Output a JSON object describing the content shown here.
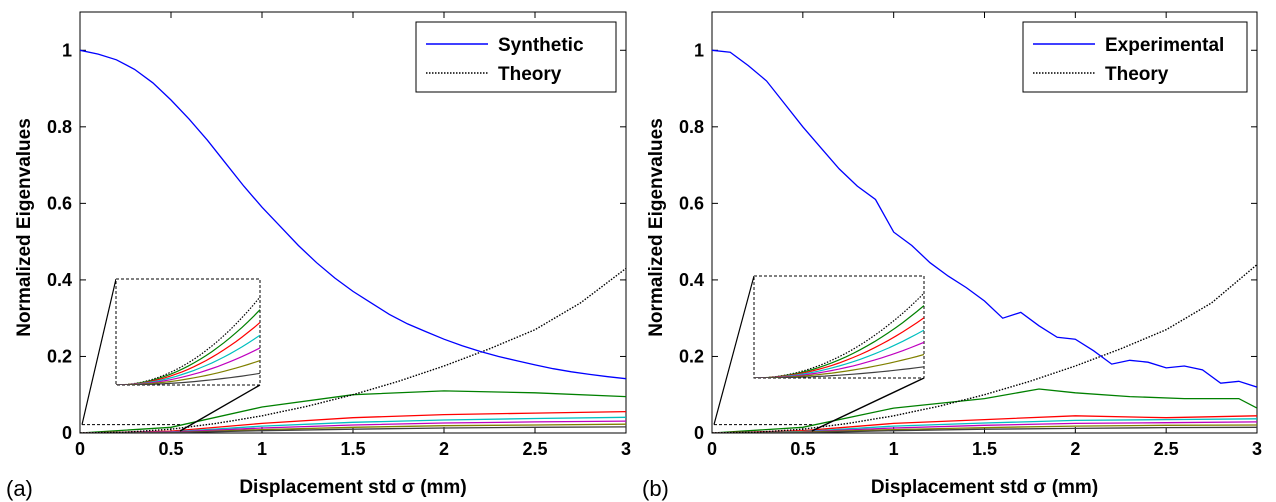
{
  "chart_data": [
    {
      "panel_label": "(a)",
      "type": "line",
      "xlabel": "Displacement std  σ (mm)",
      "ylabel": "Normalized Eigenvalues",
      "xlim": [
        0,
        3
      ],
      "ylim": [
        0,
        1.1
      ],
      "xticks": [
        "0",
        "0.5",
        "1",
        "1.5",
        "2",
        "2.5",
        "3"
      ],
      "yticks": [
        "0",
        "0.2",
        "0.4",
        "0.6",
        "0.8",
        "1"
      ],
      "grid": false,
      "legend_position": "top-right",
      "series": [
        {
          "name": "Synthetic",
          "style": "solid",
          "color": "#0000ff",
          "x": [
            0,
            0.1,
            0.2,
            0.3,
            0.4,
            0.5,
            0.6,
            0.7,
            0.8,
            0.9,
            1.0,
            1.1,
            1.2,
            1.3,
            1.4,
            1.5,
            1.6,
            1.7,
            1.8,
            1.9,
            2.0,
            2.1,
            2.2,
            2.3,
            2.4,
            2.5,
            2.6,
            2.7,
            2.8,
            2.9,
            3.0
          ],
          "y": [
            1.0,
            0.99,
            0.975,
            0.95,
            0.915,
            0.87,
            0.82,
            0.765,
            0.705,
            0.645,
            0.59,
            0.54,
            0.49,
            0.445,
            0.405,
            0.37,
            0.34,
            0.31,
            0.285,
            0.265,
            0.245,
            0.228,
            0.213,
            0.2,
            0.189,
            0.178,
            0.168,
            0.16,
            0.153,
            0.147,
            0.142
          ]
        },
        {
          "name": "Theory",
          "style": "dotted",
          "color": "#000000",
          "x": [
            0,
            0.25,
            0.5,
            0.75,
            1.0,
            1.25,
            1.5,
            1.75,
            2.0,
            2.25,
            2.5,
            2.75,
            3.0
          ],
          "y": [
            0.0,
            0.002,
            0.01,
            0.025,
            0.045,
            0.07,
            0.1,
            0.135,
            0.175,
            0.22,
            0.27,
            0.34,
            0.43
          ]
        },
        {
          "name": "",
          "style": "solid",
          "color": "#008000",
          "x": [
            0,
            0.5,
            1.0,
            1.5,
            2.0,
            2.5,
            3.0
          ],
          "y": [
            0.0,
            0.015,
            0.068,
            0.1,
            0.11,
            0.105,
            0.095
          ]
        },
        {
          "name": "",
          "style": "solid",
          "color": "#ff0000",
          "x": [
            0,
            0.5,
            1.0,
            1.5,
            2.0,
            2.5,
            3.0
          ],
          "y": [
            0.0,
            0.005,
            0.025,
            0.04,
            0.048,
            0.052,
            0.056
          ]
        },
        {
          "name": "",
          "style": "solid",
          "color": "#00bfbf",
          "x": [
            0,
            0.5,
            1.0,
            1.5,
            2.0,
            2.5,
            3.0
          ],
          "y": [
            0.0,
            0.003,
            0.018,
            0.028,
            0.034,
            0.038,
            0.041
          ]
        },
        {
          "name": "",
          "style": "solid",
          "color": "#bf00bf",
          "x": [
            0,
            0.5,
            1.0,
            1.5,
            2.0,
            2.5,
            3.0
          ],
          "y": [
            0.0,
            0.002,
            0.013,
            0.021,
            0.026,
            0.029,
            0.031
          ]
        },
        {
          "name": "",
          "style": "solid",
          "color": "#808000",
          "x": [
            0,
            0.5,
            1.0,
            1.5,
            2.0,
            2.5,
            3.0
          ],
          "y": [
            0.0,
            0.001,
            0.009,
            0.015,
            0.019,
            0.021,
            0.023
          ]
        },
        {
          "name": "",
          "style": "solid",
          "color": "#404040",
          "x": [
            0,
            0.5,
            1.0,
            1.5,
            2.0,
            2.5,
            3.0
          ],
          "y": [
            0.0,
            0.001,
            0.006,
            0.01,
            0.013,
            0.015,
            0.016
          ]
        }
      ],
      "inset": {
        "xlim": [
          0,
          0.55
        ],
        "ylim": [
          0,
          0.022
        ]
      }
    },
    {
      "panel_label": "(b)",
      "type": "line",
      "xlabel": "Displacement std  σ (mm)",
      "ylabel": "Normalized Eigenvalues",
      "xlim": [
        0,
        3
      ],
      "ylim": [
        0,
        1.1
      ],
      "xticks": [
        "0",
        "0.5",
        "1",
        "1.5",
        "2",
        "2.5",
        "3"
      ],
      "yticks": [
        "0",
        "0.2",
        "0.4",
        "0.6",
        "0.8",
        "1"
      ],
      "grid": false,
      "legend_position": "top-right",
      "series": [
        {
          "name": "Experimental",
          "style": "solid",
          "color": "#0000ff",
          "x": [
            0,
            0.1,
            0.2,
            0.3,
            0.4,
            0.5,
            0.6,
            0.7,
            0.8,
            0.9,
            1.0,
            1.1,
            1.2,
            1.3,
            1.4,
            1.5,
            1.6,
            1.7,
            1.8,
            1.9,
            2.0,
            2.1,
            2.2,
            2.3,
            2.4,
            2.5,
            2.6,
            2.7,
            2.8,
            2.9,
            3.0
          ],
          "y": [
            1.0,
            0.995,
            0.96,
            0.92,
            0.86,
            0.8,
            0.745,
            0.69,
            0.645,
            0.61,
            0.525,
            0.49,
            0.445,
            0.41,
            0.38,
            0.345,
            0.3,
            0.315,
            0.28,
            0.25,
            0.245,
            0.215,
            0.18,
            0.19,
            0.185,
            0.17,
            0.175,
            0.165,
            0.13,
            0.135,
            0.12
          ]
        },
        {
          "name": "Theory",
          "style": "dotted",
          "color": "#000000",
          "x": [
            0,
            0.25,
            0.5,
            0.75,
            1.0,
            1.25,
            1.5,
            1.75,
            2.0,
            2.25,
            2.5,
            2.75,
            3.0
          ],
          "y": [
            0.0,
            0.002,
            0.01,
            0.025,
            0.045,
            0.07,
            0.1,
            0.135,
            0.175,
            0.22,
            0.27,
            0.34,
            0.44
          ]
        },
        {
          "name": "",
          "style": "solid",
          "color": "#008000",
          "x": [
            0,
            0.5,
            1.0,
            1.5,
            1.8,
            2.0,
            2.3,
            2.6,
            2.9,
            3.0
          ],
          "y": [
            0.0,
            0.015,
            0.065,
            0.09,
            0.115,
            0.105,
            0.095,
            0.09,
            0.09,
            0.065
          ]
        },
        {
          "name": "",
          "style": "solid",
          "color": "#ff0000",
          "x": [
            0,
            0.5,
            1.0,
            1.5,
            2.0,
            2.5,
            3.0
          ],
          "y": [
            0.0,
            0.006,
            0.025,
            0.035,
            0.045,
            0.04,
            0.045
          ]
        },
        {
          "name": "",
          "style": "solid",
          "color": "#00bfbf",
          "x": [
            0,
            0.5,
            1.0,
            1.5,
            2.0,
            2.5,
            3.0
          ],
          "y": [
            0.0,
            0.004,
            0.018,
            0.026,
            0.033,
            0.035,
            0.037
          ]
        },
        {
          "name": "",
          "style": "solid",
          "color": "#bf00bf",
          "x": [
            0,
            0.5,
            1.0,
            1.5,
            2.0,
            2.5,
            3.0
          ],
          "y": [
            0.0,
            0.003,
            0.013,
            0.02,
            0.025,
            0.027,
            0.029
          ]
        },
        {
          "name": "",
          "style": "solid",
          "color": "#808000",
          "x": [
            0,
            0.5,
            1.0,
            1.5,
            2.0,
            2.5,
            3.0
          ],
          "y": [
            0.0,
            0.002,
            0.009,
            0.014,
            0.018,
            0.02,
            0.021
          ]
        },
        {
          "name": "",
          "style": "solid",
          "color": "#404040",
          "x": [
            0,
            0.5,
            1.0,
            1.5,
            2.0,
            2.5,
            3.0
          ],
          "y": [
            0.0,
            0.001,
            0.006,
            0.01,
            0.012,
            0.014,
            0.015
          ]
        }
      ],
      "inset": {
        "xlim": [
          0,
          0.55
        ],
        "ylim": [
          0,
          0.022
        ]
      }
    }
  ]
}
